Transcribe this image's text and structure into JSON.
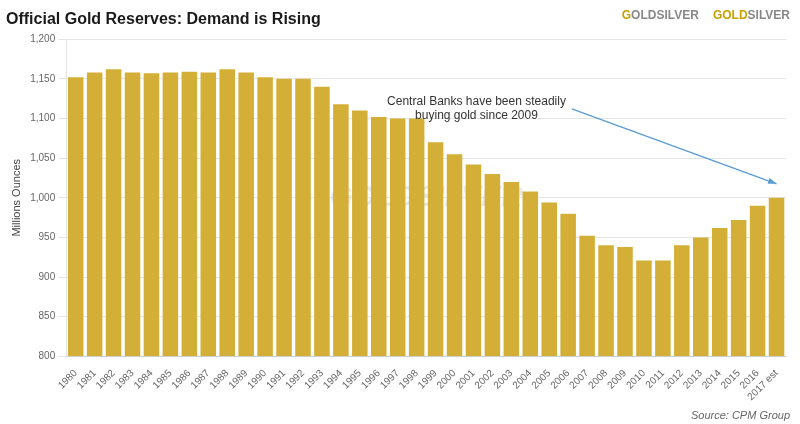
{
  "chart_data": {
    "type": "bar",
    "title": "Official Gold Reserves: Demand is Rising",
    "ylabel": "Millions Ounces",
    "categories": [
      "1980",
      "1981",
      "1982",
      "1983",
      "1984",
      "1985",
      "1986",
      "1987",
      "1988",
      "1989",
      "1990",
      "1991",
      "1992",
      "1993",
      "1994",
      "1995",
      "1996",
      "1997",
      "1998",
      "1999",
      "2000",
      "2001",
      "2002",
      "2003",
      "2004",
      "2005",
      "2006",
      "2007",
      "2008",
      "2009",
      "2010",
      "2011",
      "2012",
      "2013",
      "2014",
      "2015",
      "2016",
      "2017 est"
    ],
    "values": [
      1152,
      1158,
      1162,
      1158,
      1157,
      1158,
      1159,
      1158,
      1162,
      1158,
      1152,
      1150,
      1150,
      1140,
      1118,
      1110,
      1102,
      1100,
      1100,
      1070,
      1055,
      1042,
      1030,
      1020,
      1008,
      994,
      980,
      952,
      940,
      938,
      921,
      921,
      940,
      950,
      962,
      972,
      990,
      1000
    ],
    "color": "#D4AF37",
    "ylim": [
      800,
      1200
    ],
    "yticks": [
      800,
      850,
      900,
      950,
      {
        "value": 1000,
        "label": "1,000"
      },
      {
        "value": 1050,
        "label": "1,050"
      },
      {
        "value": 1100,
        "label": "1,100"
      },
      {
        "value": 1150,
        "label": "1,150"
      },
      {
        "value": 1200,
        "label": "1,200"
      }
    ],
    "grid": true,
    "annotations": [
      "Central Banks have been steadily\nbuying gold since 2009"
    ],
    "watermark": "GOLDSILVER",
    "source": "Source: CPM Group",
    "logo": [
      "G",
      "OLDSILVER",
      "GOLD",
      "SILVER"
    ]
  }
}
